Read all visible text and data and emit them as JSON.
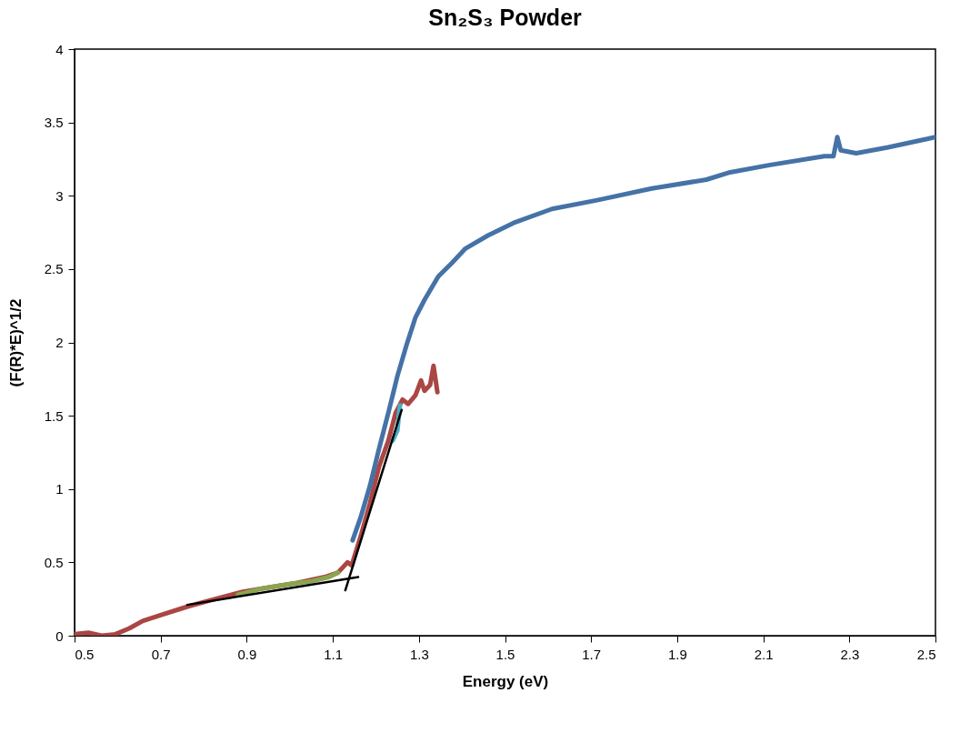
{
  "chart_data": {
    "type": "line",
    "title": "Sn₂S₃ Powder",
    "xlabel": "Energy (eV)",
    "ylabel": "(F(R)*E)^1/2",
    "xlim": [
      0.5,
      2.5
    ],
    "xticks": [
      0.5,
      0.7,
      0.9,
      1.1,
      1.3,
      1.5,
      1.7,
      1.9,
      2.1,
      2.3,
      2.5
    ],
    "ylim": [
      0,
      4
    ],
    "yticks": [
      0,
      0.5,
      1,
      1.5,
      2,
      2.5,
      3,
      3.5,
      4
    ],
    "grid": false,
    "marker": "none",
    "line_style": "solid",
    "series": [
      {
        "color": "#aa4643",
        "x": [
          0.5,
          0.532,
          0.563,
          0.595,
          0.627,
          0.658,
          0.7,
          0.764,
          0.827,
          0.891,
          0.954,
          1.017,
          1.081,
          1.112,
          1.134,
          1.144,
          1.165,
          1.186,
          1.207,
          1.229,
          1.246,
          1.262,
          1.275,
          1.292,
          1.305,
          1.313,
          1.326,
          1.334,
          1.343
        ],
        "values": [
          0.01,
          0.02,
          0,
          0.01,
          0.05,
          0.1,
          0.14,
          0.2,
          0.25,
          0.3,
          0.33,
          0.36,
          0.4,
          0.43,
          0.5,
          0.48,
          0.68,
          0.9,
          1.15,
          1.33,
          1.52,
          1.61,
          1.58,
          1.64,
          1.74,
          1.67,
          1.71,
          1.84,
          1.66
        ]
      },
      {
        "color": "#89a54e",
        "x": [
          0.88,
          0.933,
          0.996,
          1.049,
          1.091,
          1.112
        ],
        "values": [
          0.28,
          0.32,
          0.35,
          0.37,
          0.4,
          0.43
        ]
      },
      {
        "color": "#4bacc6",
        "x": [
          1.239,
          1.25,
          1.256
        ],
        "values": [
          1.33,
          1.4,
          1.57
        ]
      },
      {
        "color": "#4572a7",
        "x": [
          1.146,
          1.165,
          1.186,
          1.207,
          1.229,
          1.25,
          1.271,
          1.292,
          1.313,
          1.345,
          1.376,
          1.408,
          1.461,
          1.524,
          1.609,
          1.714,
          1.841,
          1.968,
          2.023,
          2.116,
          2.242,
          2.263,
          2.272,
          2.28,
          2.316,
          2.39,
          2.5
        ],
        "values": [
          0.65,
          0.81,
          1.02,
          1.27,
          1.52,
          1.77,
          1.98,
          2.17,
          2.29,
          2.45,
          2.54,
          2.64,
          2.73,
          2.82,
          2.91,
          2.97,
          3.05,
          3.11,
          3.16,
          3.21,
          3.27,
          3.27,
          3.4,
          3.31,
          3.29,
          3.33,
          3.4
        ]
      },
      {
        "color": "#000000",
        "x": [
          0.762,
          1.159
        ],
        "values": [
          0.21,
          0.4
        ]
      },
      {
        "color": "#000000",
        "x": [
          1.129,
          1.26
        ],
        "values": [
          0.31,
          1.54
        ]
      }
    ]
  }
}
